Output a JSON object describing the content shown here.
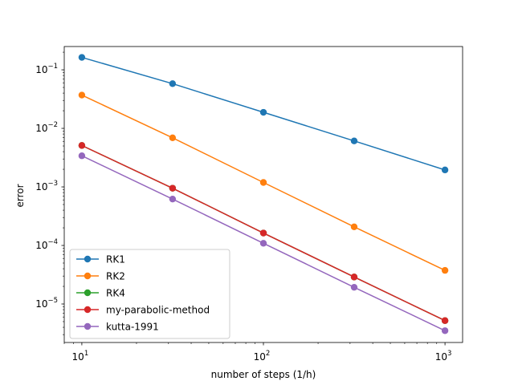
{
  "chart_data": {
    "type": "line",
    "title": "",
    "xlabel": "number of steps (1/h)",
    "ylabel": "error",
    "xscale": "log",
    "yscale": "log",
    "xlim": [
      8,
      1250
    ],
    "ylim": [
      2.2e-06,
      0.25
    ],
    "x": [
      10,
      31.6,
      100,
      316,
      1000
    ],
    "x_ticks": [
      {
        "value": 10,
        "base": "10",
        "exp": "1"
      },
      {
        "value": 100,
        "base": "10",
        "exp": "2"
      },
      {
        "value": 1000,
        "base": "10",
        "exp": "3"
      }
    ],
    "y_ticks": [
      {
        "value": 0.1,
        "base": "10",
        "exp": "−1"
      },
      {
        "value": 0.01,
        "base": "10",
        "exp": "−2"
      },
      {
        "value": 0.001,
        "base": "10",
        "exp": "−3"
      },
      {
        "value": 0.0001,
        "base": "10",
        "exp": "−4"
      },
      {
        "value": 1e-05,
        "base": "10",
        "exp": "−5"
      }
    ],
    "grid": false,
    "legend_position": "lower-left",
    "series": [
      {
        "name": "RK1",
        "color": "#1f77b4",
        "values": [
          0.163,
          0.058,
          0.0188,
          0.0061,
          0.00195
        ]
      },
      {
        "name": "RK2",
        "color": "#ff7f0e",
        "values": [
          0.037,
          0.0069,
          0.00119,
          0.000208,
          3.75e-05
        ]
      },
      {
        "name": "RK4",
        "color": "#2ca02c",
        "values": [
          0.0051,
          0.00095,
          0.000163,
          2.89e-05,
          5.2e-06
        ]
      },
      {
        "name": "my-parabolic-method",
        "color": "#d62728",
        "values": [
          0.0051,
          0.00095,
          0.000163,
          2.89e-05,
          5.2e-06
        ]
      },
      {
        "name": "kutta-1991",
        "color": "#9467bd",
        "values": [
          0.0034,
          0.00062,
          0.000109,
          1.93e-05,
          3.5e-06
        ]
      }
    ]
  }
}
